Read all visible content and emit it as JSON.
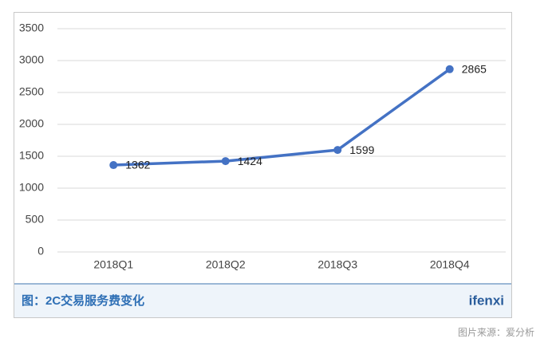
{
  "chart_data": {
    "type": "line",
    "categories": [
      "2018Q1",
      "2018Q2",
      "2018Q3",
      "2018Q4"
    ],
    "series": [
      {
        "values": [
          1362,
          1424,
          1599,
          2865
        ],
        "color": "#4472c4"
      }
    ],
    "ylim": [
      0,
      3500
    ],
    "yticks": [
      0,
      500,
      1000,
      1500,
      2000,
      2500,
      3000,
      3500
    ],
    "grid": true
  },
  "caption": "图：2C交易服务费变化",
  "logo": "ifenxi",
  "source": "图片来源：爱分析"
}
